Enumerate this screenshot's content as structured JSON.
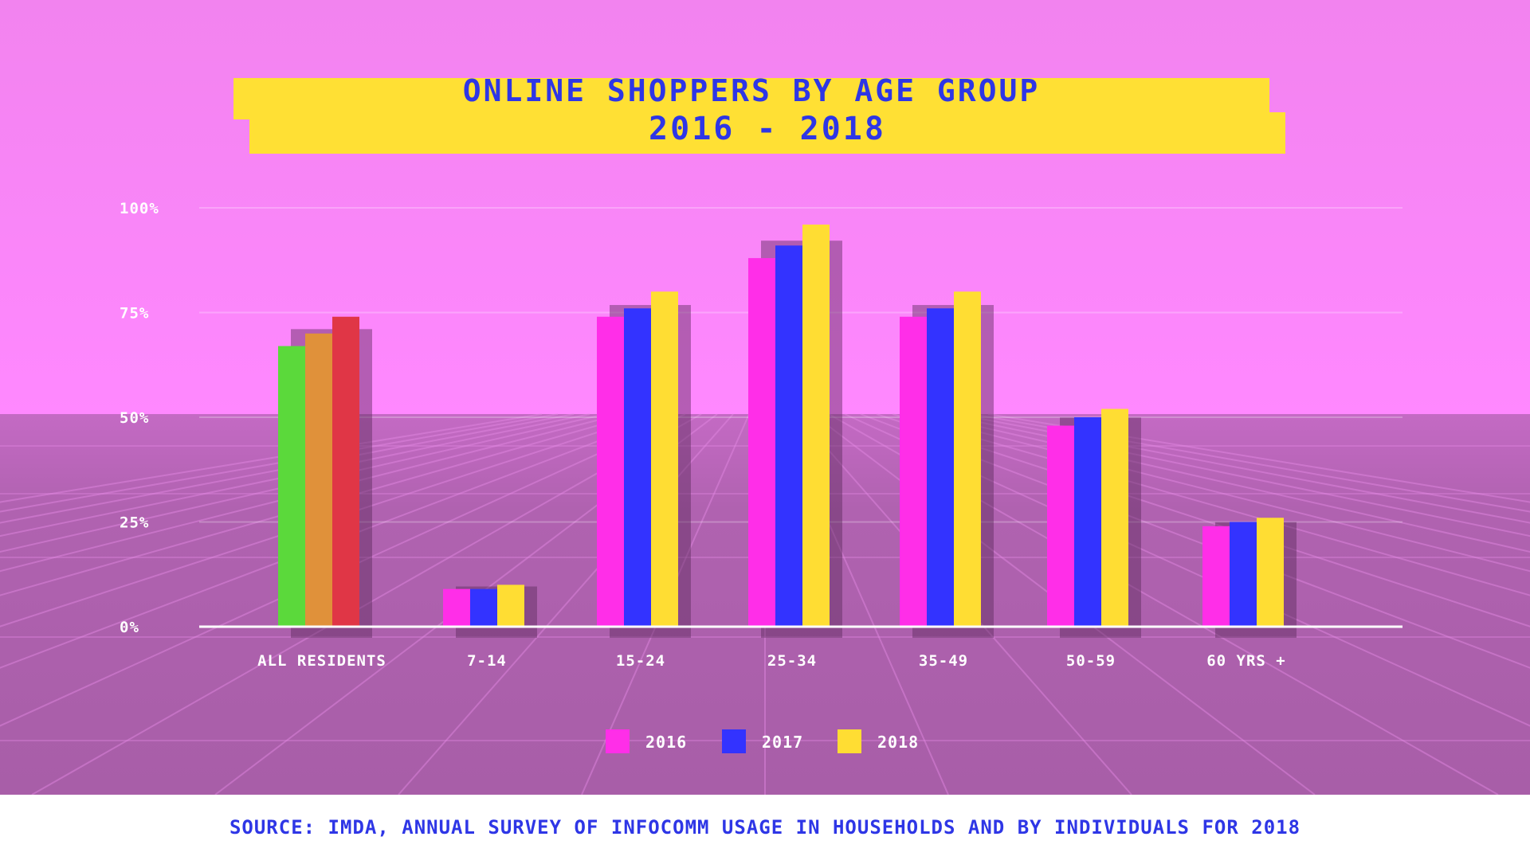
{
  "chart_data": {
    "type": "bar",
    "title": "ONLINE SHOPPERS BY AGE GROUP",
    "subtitle": "2016 - 2018",
    "categories": [
      "ALL RESIDENTS",
      "7-14",
      "15-24",
      "25-34",
      "35-49",
      "50-59",
      "60 YRS +"
    ],
    "series": [
      {
        "name": "2016",
        "values": [
          67,
          9,
          74,
          88,
          74,
          48,
          24
        ]
      },
      {
        "name": "2017",
        "values": [
          70,
          9,
          76,
          91,
          76,
          50,
          25
        ]
      },
      {
        "name": "2018",
        "values": [
          74,
          10,
          80,
          96,
          80,
          52,
          26
        ]
      }
    ],
    "ylim": [
      0,
      100
    ],
    "yticks": [
      "0%",
      "25%",
      "50%",
      "75%",
      "100%"
    ],
    "ytick_values": [
      0,
      25,
      50,
      75,
      100
    ],
    "legend_position": "bottom-center",
    "grid": true,
    "colors": {
      "series": [
        "#ff2ee8",
        "#3333ff",
        "#ffdd33"
      ],
      "all_residents": [
        "#5bd93b",
        "#e0913a",
        "#e03646"
      ]
    },
    "source": "SOURCE: IMDA, ANNUAL SURVEY OF INFOCOMM USAGE IN HOUSEHOLDS AND BY INDIVIDUALS FOR 2018"
  }
}
